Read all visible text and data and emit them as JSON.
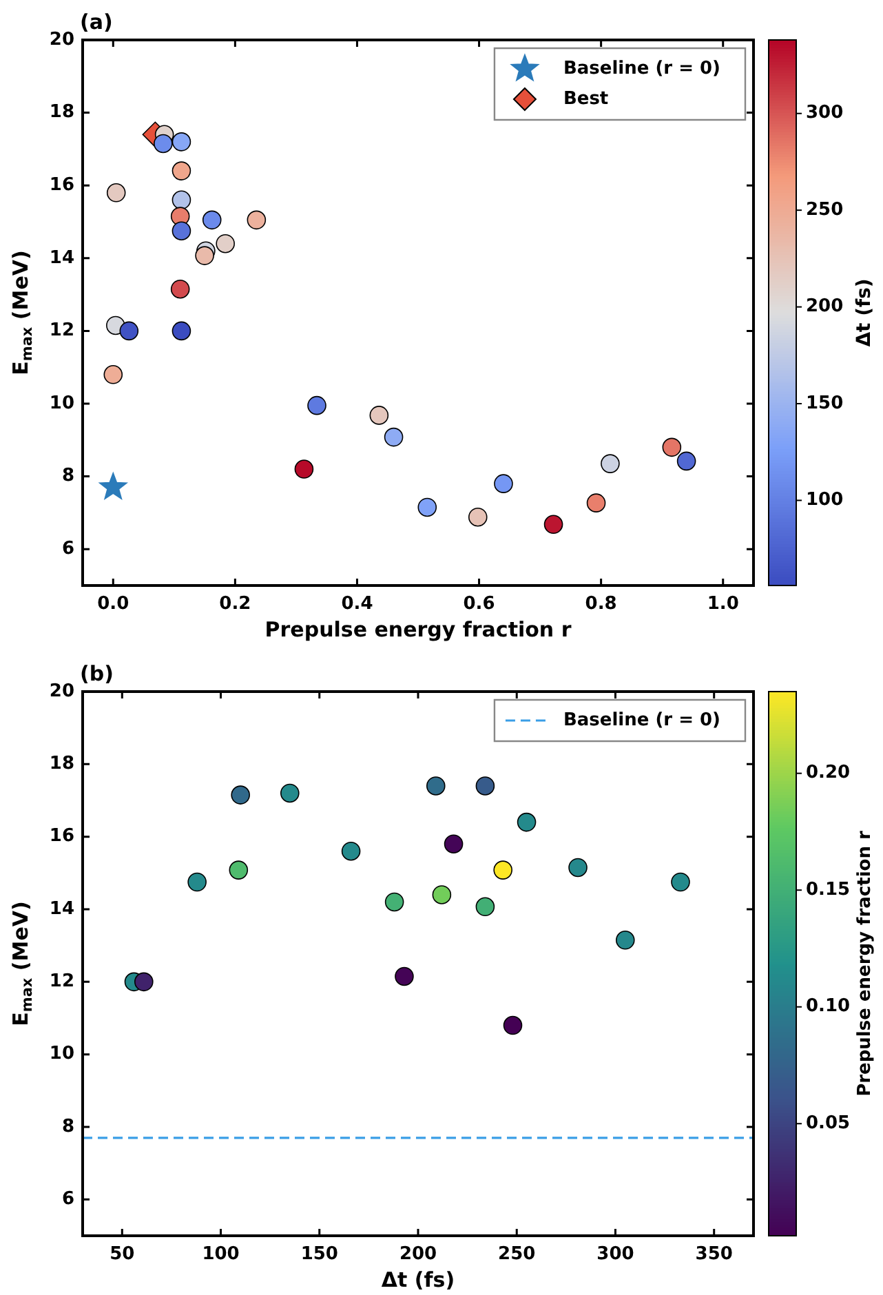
{
  "chart_data": [
    {
      "type": "scatter",
      "title": "(a)",
      "xlabel": "Prepulse energy fraction r",
      "ylabel": "E$_{max}$ (MeV)",
      "clabel": "Δt (fs)",
      "xlim": [
        -0.05,
        1.05
      ],
      "xticks": [
        {
          "value": 0,
          "label": "0.0"
        },
        {
          "value": 0.2,
          "label": "0.2"
        },
        {
          "value": 0.4,
          "label": "0.4"
        },
        {
          "value": 0.6,
          "label": "0.6"
        },
        {
          "value": 0.8,
          "label": "0.8"
        },
        {
          "value": 1,
          "label": "1.0"
        }
      ],
      "ylim": [
        5,
        20
      ],
      "yticks": [
        6,
        8,
        10,
        12,
        14,
        16,
        18,
        20
      ],
      "clim": [
        56,
        338
      ],
      "cticks": [
        100,
        150,
        200,
        250,
        300
      ],
      "grid": false,
      "legend": "top right",
      "series": [
        {
          "type": "scatter",
          "marker": "circle",
          "x": [
            0.005,
            0.004,
            0.026,
            0.0,
            0.084,
            0.082,
            0.112,
            0.112,
            0.112,
            0.11,
            0.112,
            0.162,
            0.235,
            0.152,
            0.15,
            0.184,
            0.11,
            0.112,
            0.334,
            0.313,
            0.436,
            0.46,
            0.515,
            0.598,
            0.64,
            0.722,
            0.792,
            0.815,
            0.916,
            0.94
          ],
          "values": [
            15.8,
            12.15,
            12.0,
            10.8,
            17.4,
            17.15,
            17.2,
            16.4,
            15.6,
            15.15,
            14.75,
            15.05,
            15.05,
            14.2,
            14.07,
            14.4,
            13.15,
            12.0,
            9.95,
            8.2,
            9.68,
            9.08,
            7.15,
            6.88,
            7.8,
            6.68,
            7.27,
            8.35,
            8.8,
            8.42
          ],
          "colors": [
            "#e4c9c0",
            "#d7d9df",
            "#4052c4",
            "#eead96",
            "#e1d2cc",
            "#6c8cec",
            "#87a7f6",
            "#f0a68c",
            "#b2c2e9",
            "#e87d6b",
            "#5872da",
            "#6b8aeb",
            "#ecb19d",
            "#d0d5e1",
            "#e9baaa",
            "#e2cfc8",
            "#d24a4e",
            "#3b4cc0",
            "#5e7ae0",
            "#b70a29",
            "#e5c7bd",
            "#8eabf4",
            "#80a2f8",
            "#e6c2b6",
            "#7597f4",
            "#bb1530",
            "#e97f6c",
            "#ccd2e2",
            "#e47566",
            "#5168d3"
          ]
        },
        {
          "type": "scatter",
          "name": "Baseline (r = 0)",
          "marker": "star",
          "color": "#2b7bba",
          "x": [
            0
          ],
          "values": [
            7.7
          ]
        },
        {
          "type": "scatter",
          "name": "Best",
          "marker": "diamond",
          "color": "#e6503a",
          "x": [
            0.069
          ],
          "values": [
            17.4
          ]
        }
      ]
    },
    {
      "type": "scatter",
      "title": "(b)",
      "xlabel": "Δt (fs)",
      "ylabel": "E$_{max}$ (MeV)",
      "clabel": "Prepulse energy fraction r",
      "xlim": [
        30,
        370
      ],
      "xticks": [
        50,
        100,
        150,
        200,
        250,
        300,
        350
      ],
      "ylim": [
        5,
        20
      ],
      "yticks": [
        6,
        8,
        10,
        12,
        14,
        16,
        18,
        20
      ],
      "clim": [
        0.002,
        0.235
      ],
      "cticks": [
        {
          "value": 0.05,
          "label": "0.05"
        },
        {
          "value": 0.1,
          "label": "0.10"
        },
        {
          "value": 0.15,
          "label": "0.15"
        },
        {
          "value": 0.2,
          "label": "0.20"
        }
      ],
      "grid": false,
      "legend": "top right",
      "series": [
        {
          "type": "line",
          "name": "Baseline (r = 0)",
          "color": "#3a9ee6",
          "line_style": "dashed",
          "marker": "none",
          "x": [
            30,
            370
          ],
          "values": [
            7.7,
            7.7
          ]
        },
        {
          "type": "scatter",
          "marker": "circle",
          "x": [
            56,
            61,
            88,
            109,
            110,
            135,
            166,
            188,
            193,
            209,
            212,
            218,
            234,
            234,
            243,
            248,
            255,
            281,
            305,
            333
          ],
          "values": [
            12.0,
            12.0,
            14.75,
            15.08,
            17.15,
            17.2,
            15.6,
            14.2,
            12.15,
            17.4,
            14.4,
            15.8,
            17.4,
            14.07,
            15.08,
            10.8,
            16.4,
            15.15,
            13.15,
            14.75
          ],
          "colors": [
            "#248a8c",
            "#40226b",
            "#248a8c",
            "#4fbb6d",
            "#31698b",
            "#248a8c",
            "#248a8c",
            "#44b174",
            "#440456",
            "#306c8b",
            "#72cd5a",
            "#440557",
            "#375b8b",
            "#42af75",
            "#fde725",
            "#440154",
            "#248a8c",
            "#25888c",
            "#25888c",
            "#248a8c"
          ]
        }
      ]
    }
  ]
}
